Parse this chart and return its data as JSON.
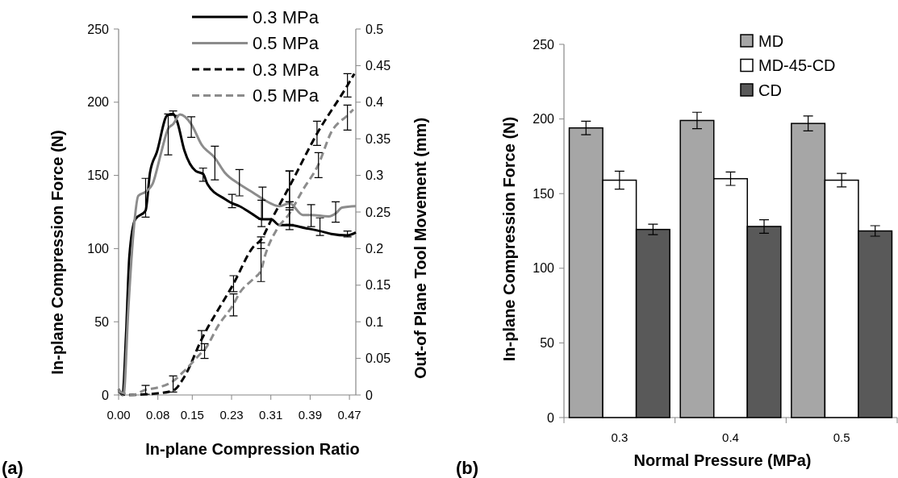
{
  "chart_data": [
    {
      "type": "line",
      "xlabel": "In-plane Compression Ratio",
      "ylabel": "In-plane Compression Force (N)",
      "y2label": "Out-of Plane Tool Movement (mm)",
      "annotations": [
        "(a)"
      ],
      "xlim": [
        0,
        0.483
      ],
      "xticks": [
        {
          "value": 0,
          "label": "0.00"
        },
        0.08,
        0.15,
        0.23,
        0.31,
        0.39,
        0.47
      ],
      "ylim": [
        0,
        250
      ],
      "yticks": [
        0,
        50,
        100,
        150,
        200,
        250
      ],
      "y2lim": [
        0,
        0.5
      ],
      "y2ticks": [
        0,
        0.05,
        0.1,
        0.15,
        0.2,
        0.25,
        0.3,
        0.35,
        0.4,
        0.45,
        0.5
      ],
      "legend": "top",
      "grid": false,
      "series": [
        {
          "name": "0.3 MPa",
          "color": "#000000",
          "line_style": "solid",
          "x": [
            0,
            0.008,
            0.015,
            0.022,
            0.034,
            0.055,
            0.064,
            0.078,
            0.099,
            0.111,
            0.119,
            0.134,
            0.157,
            0.172,
            0.181,
            0.216,
            0.231,
            0.246,
            0.275,
            0.291,
            0.31,
            0.328,
            0.348,
            0.38,
            0.41,
            0.433,
            0.466,
            0.483
          ],
          "values": [
            4,
            0,
            40,
            95,
            120,
            126,
            152,
            166,
            191,
            192,
            187,
            167,
            153,
            151,
            144,
            134,
            131,
            129,
            123,
            120,
            120,
            116,
            116,
            114,
            112,
            110,
            109,
            111
          ],
          "errors": [
            null,
            null,
            null,
            null,
            null,
            [
              121.5,
              148
            ],
            null,
            null,
            null,
            [
              191,
              194
            ],
            null,
            null,
            null,
            [
              146,
              155
            ],
            null,
            null,
            [
              128,
              137
            ],
            null,
            null,
            [
              115,
              133
            ],
            null,
            null,
            [
              113,
              132
            ],
            null,
            [
              109,
              121
            ],
            null,
            [
              108,
              112
            ],
            null
          ]
        },
        {
          "name": "0.5 MPa",
          "color": "#8c8c8c",
          "line_style": "solid",
          "x": [
            0,
            0.01,
            0.02,
            0.03,
            0.04,
            0.056,
            0.069,
            0.087,
            0.101,
            0.111,
            0.125,
            0.148,
            0.169,
            0.196,
            0.216,
            0.246,
            0.275,
            0.293,
            0.328,
            0.348,
            0.375,
            0.392,
            0.428,
            0.442,
            0.455,
            0.483
          ],
          "values": [
            4,
            0,
            60,
            110,
            136,
            139,
            144,
            166,
            182,
            185,
            191.6,
            185,
            171,
            162,
            152,
            144,
            138,
            134,
            129,
            131,
            123,
            123,
            122,
            124,
            128,
            129
          ],
          "errors": [
            null,
            null,
            null,
            null,
            null,
            null,
            null,
            null,
            [
              164,
              192
            ],
            null,
            null,
            [
              176,
              190
            ],
            null,
            [
              147,
              170
            ],
            null,
            [
              136,
              154
            ],
            null,
            [
              120,
              142
            ],
            null,
            [
              128,
              153
            ],
            null,
            [
              115,
              130
            ],
            null,
            [
              118,
              132
            ],
            null,
            null
          ]
        },
        {
          "name": "0.3 MPa",
          "color": "#000000",
          "line_style": "dashed",
          "axis": "y2",
          "x": [
            0,
            0.017,
            0.075,
            0.111,
            0.134,
            0.169,
            0.234,
            0.275,
            0.29,
            0.31,
            0.348,
            0.404,
            0.466,
            0.48
          ],
          "values": [
            0.005,
            0,
            0.002,
            0.006,
            0.025,
            0.076,
            0.152,
            0.203,
            0.212,
            0.238,
            0.285,
            0.357,
            0.423,
            0.439
          ],
          "errors": [
            null,
            null,
            null,
            [
              0.004,
              0.026
            ],
            null,
            [
              0.061,
              0.088
            ],
            [
              0.141,
              0.163
            ],
            null,
            [
              0.2,
              0.216
            ],
            null,
            [
              0.264,
              0.306
            ],
            [
              0.341,
              0.374
            ],
            [
              0.407,
              0.439
            ],
            null
          ]
        },
        {
          "name": "0.5 MPa",
          "color": "#8c8c8c",
          "line_style": "dashed",
          "axis": "y2",
          "x": [
            0,
            0.028,
            0.055,
            0.064,
            0.111,
            0.134,
            0.169,
            0.175,
            0.204,
            0.234,
            0.246,
            0.275,
            0.29,
            0.298,
            0.322,
            0.348,
            0.375,
            0.407,
            0.433,
            0.466,
            0.478
          ],
          "values": [
            0.005,
            0,
            0.007,
            0.008,
            0.019,
            0.033,
            0.058,
            0.062,
            0.096,
            0.124,
            0.139,
            0.159,
            0.17,
            0.19,
            0.226,
            0.248,
            0.28,
            0.315,
            0.359,
            0.382,
            0.39
          ],
          "errors": [
            null,
            null,
            [
              0.001,
              0.013
            ],
            null,
            null,
            null,
            null,
            [
              0.05,
              0.07
            ],
            null,
            [
              0.108,
              0.138
            ],
            null,
            null,
            [
              0.155,
              0.208
            ],
            null,
            null,
            [
              0.233,
              0.253
            ],
            null,
            [
              0.297,
              0.331
            ],
            null,
            [
              0.362,
              0.396
            ],
            null
          ]
        }
      ]
    },
    {
      "type": "bar",
      "xlabel": "Normal Pressure (MPa)",
      "ylabel": "In-plane Compression Force (N)",
      "annotations": [
        "(b)"
      ],
      "categories": [
        "0.3",
        "0.4",
        "0.5"
      ],
      "ylim": [
        0,
        250
      ],
      "yticks": [
        0,
        50,
        100,
        150,
        200,
        250
      ],
      "legend": "top right",
      "grid": false,
      "series": [
        {
          "name": "MD",
          "color": "#a6a6a6",
          "values": [
            194,
            199,
            197
          ],
          "errors": [
            4.5,
            5.5,
            5
          ]
        },
        {
          "name": "MD-45-CD",
          "color": "#ffffff",
          "values": [
            159,
            160,
            159
          ],
          "errors": [
            6,
            4.5,
            4.5
          ]
        },
        {
          "name": "CD",
          "color": "#595959",
          "values": [
            126,
            128,
            125
          ],
          "errors": [
            3.5,
            4.5,
            3.5
          ]
        }
      ]
    }
  ]
}
